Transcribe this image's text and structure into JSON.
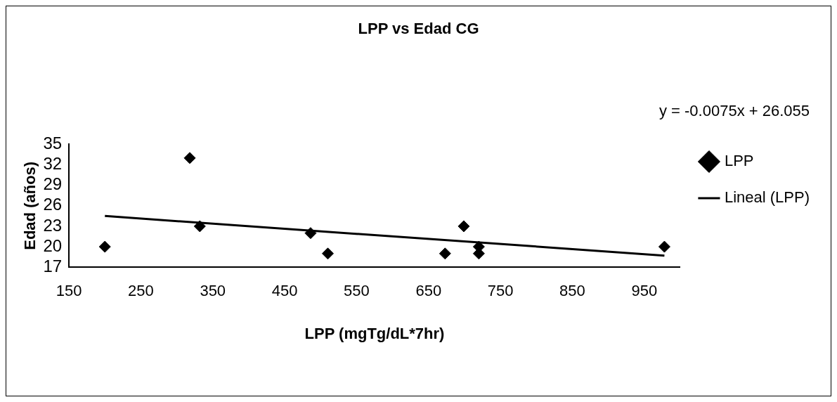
{
  "chart_data": {
    "type": "scatter",
    "title": "LPP vs Edad CG",
    "xlabel": "LPP (mgTg/dL*7hr)",
    "ylabel": "Edad (años)",
    "series": [
      {
        "name": "LPP",
        "color": "#000000",
        "marker": "diamond",
        "x": [
          200,
          318,
          332,
          486,
          510,
          673,
          699,
          720,
          720,
          978
        ],
        "values": [
          20,
          33,
          23,
          22,
          19,
          19,
          23,
          20,
          19,
          20
        ]
      },
      {
        "name": "Lineal (LPP)",
        "type": "line",
        "color": "#000000",
        "marker": "none",
        "x": [
          200,
          978
        ],
        "values": [
          24.5,
          18.7
        ]
      }
    ],
    "xlim": [
      150,
      1000
    ],
    "xticks": [
      150,
      250,
      350,
      450,
      550,
      650,
      750,
      850,
      950
    ],
    "ylim": [
      17,
      35
    ],
    "yticks": [
      17,
      20,
      23,
      26,
      29,
      32,
      35
    ],
    "annotations": [
      "y = -0.0075x + 26.055"
    ],
    "grid": false,
    "legend": "right"
  }
}
